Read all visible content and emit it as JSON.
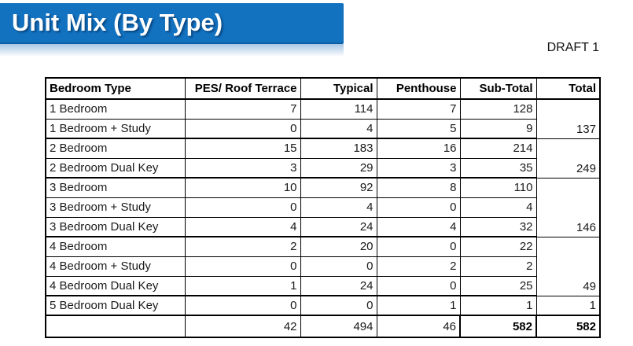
{
  "banner": {
    "title": "Unit Mix (By Type)",
    "bg_color": "#1272c0",
    "text_color": "#ffffff"
  },
  "draft_label": "DRAFT 1",
  "table": {
    "columns": [
      "Bedroom Type",
      "PES/ Roof Terrace",
      "Typical",
      "Penthouse",
      "Sub-Total",
      "Total"
    ],
    "groups": [
      {
        "rows": [
          {
            "type": "1 Bedroom",
            "pes": "7",
            "typical": "114",
            "penthouse": "7",
            "subtotal": "128"
          },
          {
            "type": "1 Bedroom + Study",
            "pes": "0",
            "typical": "4",
            "penthouse": "5",
            "subtotal": "9"
          }
        ],
        "total": "137"
      },
      {
        "rows": [
          {
            "type": "2 Bedroom",
            "pes": "15",
            "typical": "183",
            "penthouse": "16",
            "subtotal": "214"
          },
          {
            "type": "2 Bedroom Dual Key",
            "pes": "3",
            "typical": "29",
            "penthouse": "3",
            "subtotal": "35"
          }
        ],
        "total": "249"
      },
      {
        "rows": [
          {
            "type": "3 Bedroom",
            "pes": "10",
            "typical": "92",
            "penthouse": "8",
            "subtotal": "110"
          },
          {
            "type": "3 Bedroom + Study",
            "pes": "0",
            "typical": "4",
            "penthouse": "0",
            "subtotal": "4"
          },
          {
            "type": "3 Bedroom Dual Key",
            "pes": "4",
            "typical": "24",
            "penthouse": "4",
            "subtotal": "32"
          }
        ],
        "total": "146"
      },
      {
        "rows": [
          {
            "type": "4 Bedroom",
            "pes": "2",
            "typical": "20",
            "penthouse": "0",
            "subtotal": "22"
          },
          {
            "type": "4 Bedroom + Study",
            "pes": "0",
            "typical": "0",
            "penthouse": "2",
            "subtotal": "2"
          },
          {
            "type": "4 Bedroom Dual Key",
            "pes": "1",
            "typical": "24",
            "penthouse": "0",
            "subtotal": "25"
          }
        ],
        "total": "49"
      },
      {
        "rows": [
          {
            "type": "5 Bedroom Dual Key",
            "pes": "0",
            "typical": "0",
            "penthouse": "1",
            "subtotal": "1"
          }
        ],
        "total": "1"
      }
    ],
    "footer": {
      "type": "",
      "pes": "42",
      "typical": "494",
      "penthouse": "46",
      "subtotal": "582",
      "total": "582"
    }
  }
}
